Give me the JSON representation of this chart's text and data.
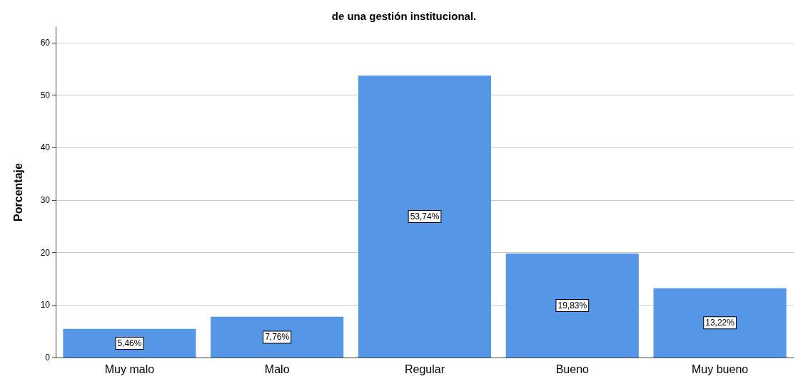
{
  "chart_data": {
    "type": "bar",
    "title": "de una gestión institucional.",
    "ylabel": "Porcentaje",
    "categories": [
      "Muy malo",
      "Malo",
      "Regular",
      "Bueno",
      "Muy bueno"
    ],
    "values": [
      5.46,
      7.76,
      53.74,
      19.83,
      13.22
    ],
    "value_labels": [
      "5,46%",
      "7,76%",
      "53,74%",
      "19,83%",
      "13,22%"
    ],
    "color": "#5596e6",
    "ylim": [
      0,
      63
    ],
    "yticks": [
      0,
      10,
      20,
      30,
      40,
      50,
      60
    ],
    "grid": "y"
  }
}
